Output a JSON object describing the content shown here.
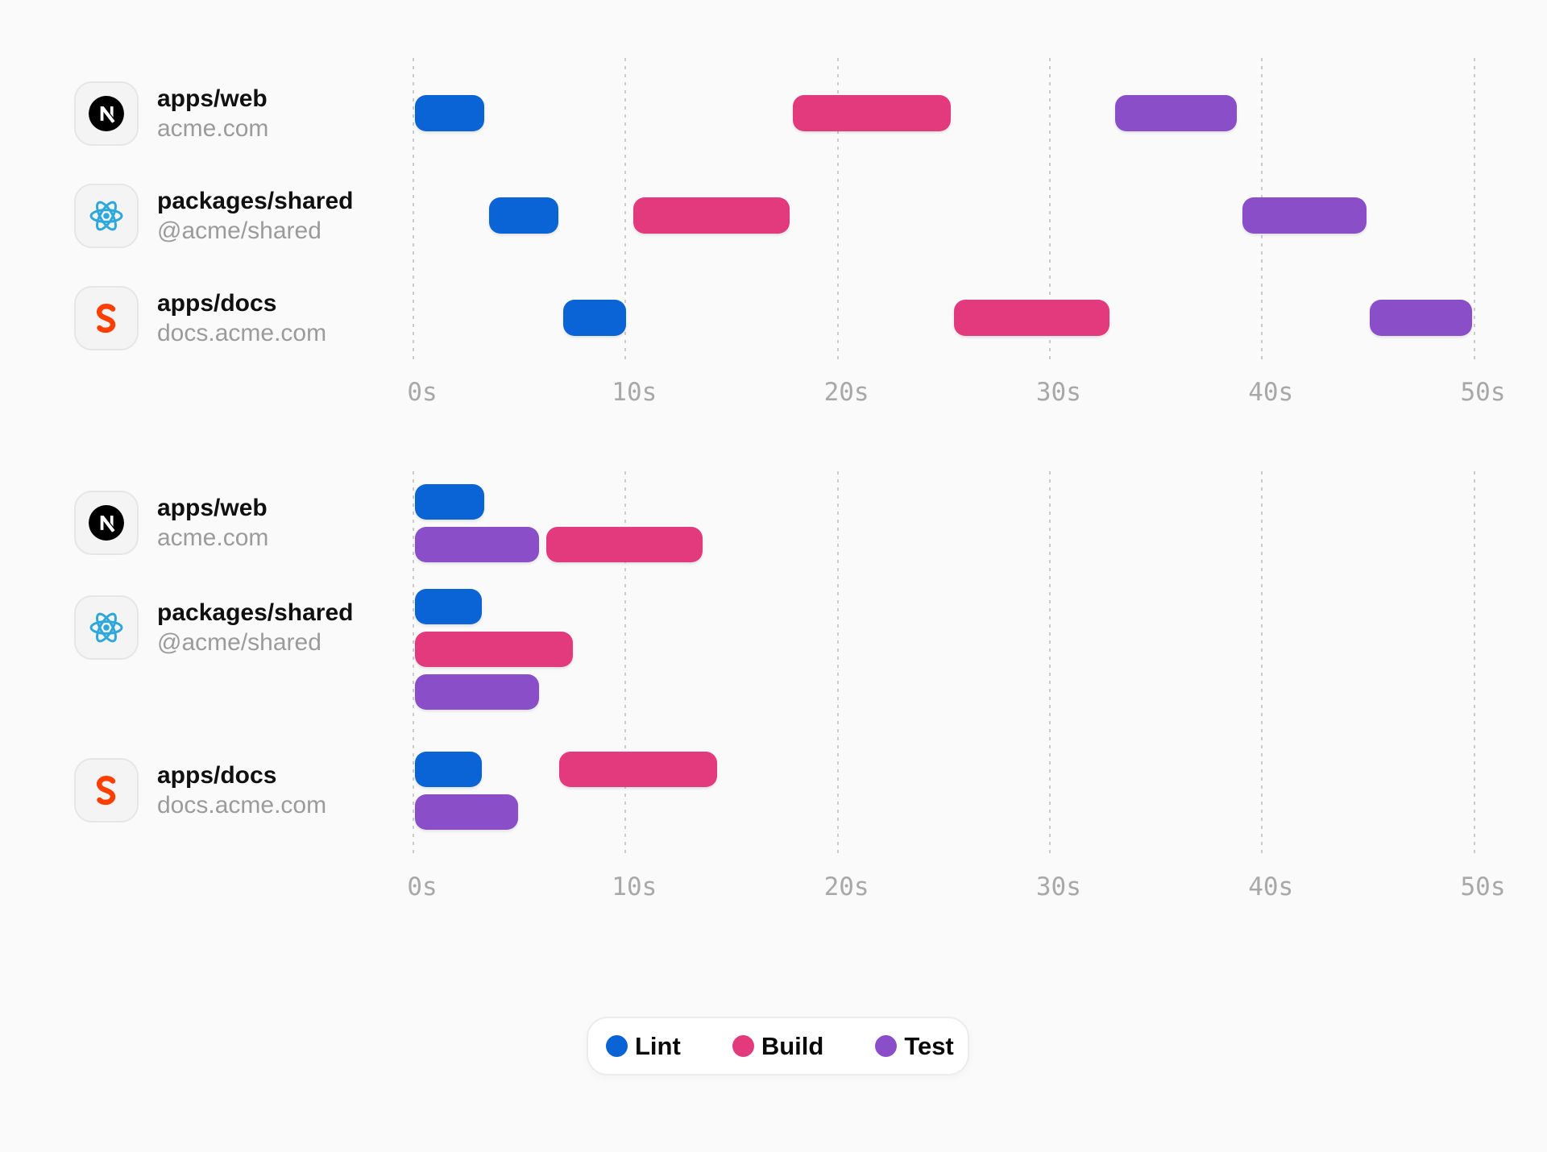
{
  "page": {
    "background": "#FAFAFA"
  },
  "colors": {
    "lint": "#0A64D6",
    "build": "#E3397D",
    "test": "#8B4EC9",
    "grid": "#CBCBCB",
    "tick_text": "#A8A8A8",
    "title_text": "#101010",
    "subtitle_text": "#9B9B9B",
    "icon_box_bg": "#F4F4F4",
    "icon_box_border": "#E6E6E6",
    "legend_bg": "#FFFFFF",
    "legend_border": "#ECECEC",
    "nextjs_logo": "#000000",
    "react_logo": "#2EA7DA",
    "svelte_logo": "#FF3E00"
  },
  "packages": {
    "web": {
      "title": "apps/web",
      "subtitle": "acme.com",
      "icon": "nextjs-logo-icon"
    },
    "shared": {
      "title": "packages/shared",
      "subtitle": "@acme/shared",
      "icon": "react-logo-icon"
    },
    "docs": {
      "title": "apps/docs",
      "subtitle": "docs.acme.com",
      "icon": "svelte-logo-icon"
    }
  },
  "legend": {
    "items": [
      {
        "label": "Lint",
        "task": "lint"
      },
      {
        "label": "Build",
        "task": "build"
      },
      {
        "label": "Test",
        "task": "test"
      }
    ]
  },
  "chart_data": [
    {
      "id": "sequential-run",
      "type": "bar",
      "variant": "gantt-timeline",
      "title": "",
      "x_axis": {
        "unit": "seconds",
        "range": [
          0,
          50
        ],
        "ticks": [
          0,
          10,
          20,
          30,
          40,
          50
        ],
        "tick_labels": [
          "0s",
          "10s",
          "20s",
          "30s",
          "40s",
          "50s"
        ],
        "grid": "dashed-vertical"
      },
      "groups": [
        {
          "package": "web",
          "lanes": [
            [
              {
                "task": "lint",
                "start": 0,
                "end": 3.4
              },
              {
                "task": "build",
                "start": 17.8,
                "end": 25.4
              },
              {
                "task": "test",
                "start": 33.0,
                "end": 38.9
              }
            ]
          ]
        },
        {
          "package": "shared",
          "lanes": [
            [
              {
                "task": "lint",
                "start": 3.5,
                "end": 6.9
              },
              {
                "task": "build",
                "start": 10.3,
                "end": 17.8
              },
              {
                "task": "test",
                "start": 39.0,
                "end": 45.0
              }
            ]
          ]
        },
        {
          "package": "docs",
          "lanes": [
            [
              {
                "task": "lint",
                "start": 7.0,
                "end": 10.1
              },
              {
                "task": "build",
                "start": 25.4,
                "end": 32.9
              },
              {
                "task": "test",
                "start": 45.0,
                "end": 50.0
              }
            ]
          ]
        }
      ]
    },
    {
      "id": "parallel-run",
      "type": "bar",
      "variant": "gantt-timeline",
      "title": "",
      "x_axis": {
        "unit": "seconds",
        "range": [
          0,
          50
        ],
        "ticks": [
          0,
          10,
          20,
          30,
          40,
          50
        ],
        "tick_labels": [
          "0s",
          "10s",
          "20s",
          "30s",
          "40s",
          "50s"
        ],
        "grid": "dashed-vertical"
      },
      "groups": [
        {
          "package": "web",
          "lanes": [
            [
              {
                "task": "lint",
                "start": 0,
                "end": 3.4
              }
            ],
            [
              {
                "task": "test",
                "start": 0,
                "end": 6.0
              },
              {
                "task": "build",
                "start": 6.2,
                "end": 13.7
              }
            ]
          ]
        },
        {
          "package": "shared",
          "lanes": [
            [
              {
                "task": "lint",
                "start": 0,
                "end": 3.3
              }
            ],
            [
              {
                "task": "build",
                "start": 0,
                "end": 7.6
              }
            ],
            [
              {
                "task": "test",
                "start": 0,
                "end": 6.0
              }
            ]
          ]
        },
        {
          "package": "docs",
          "lanes": [
            [
              {
                "task": "lint",
                "start": 0,
                "end": 3.3
              },
              {
                "task": "build",
                "start": 6.8,
                "end": 14.4
              }
            ],
            [
              {
                "task": "test",
                "start": 0,
                "end": 5.0
              }
            ]
          ]
        }
      ]
    }
  ]
}
